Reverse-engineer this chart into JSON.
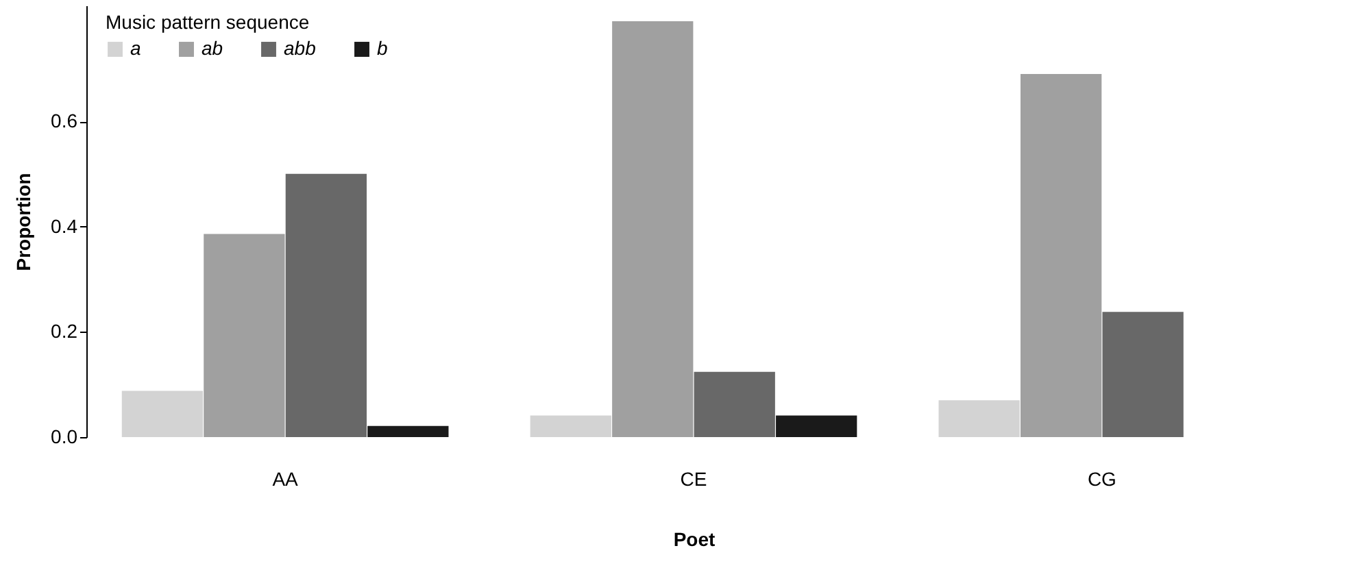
{
  "chart_data": {
    "type": "bar",
    "xlabel": "Poet",
    "ylabel": "Proportion",
    "legend_title": "Music pattern sequence",
    "legend": "top left",
    "grid": false,
    "categories": [
      "AA",
      "CE",
      "CG"
    ],
    "series": [
      {
        "name": "a",
        "color": "#d3d3d3",
        "values": [
          0.088,
          0.041,
          0.07
        ]
      },
      {
        "name": "ab",
        "color": "#a0a0a0",
        "values": [
          0.386,
          0.79,
          0.69
        ]
      },
      {
        "name": "abb",
        "color": "#686868",
        "values": [
          0.5,
          0.124,
          0.238
        ]
      },
      {
        "name": "b",
        "color": "#1a1a1a",
        "values": [
          0.021,
          0.041,
          null
        ]
      }
    ],
    "ylim": [
      0,
      0.82
    ],
    "yticks": [
      {
        "value": 0,
        "label": "0.0"
      },
      {
        "value": 0.2,
        "label": "0.2"
      },
      {
        "value": 0.4,
        "label": "0.4"
      },
      {
        "value": 0.6,
        "label": "0.6"
      }
    ]
  }
}
